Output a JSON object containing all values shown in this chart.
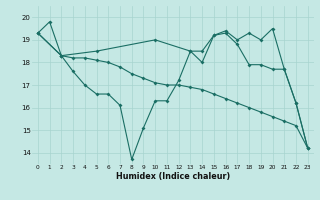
{
  "xlabel": "Humidex (Indice chaleur)",
  "background_color": "#c5e8e4",
  "grid_color": "#a8d4cf",
  "line_color": "#1a6e64",
  "xlim": [
    -0.5,
    23.5
  ],
  "ylim": [
    13.5,
    20.5
  ],
  "yticks": [
    14,
    15,
    16,
    17,
    18,
    19,
    20
  ],
  "xticks": [
    0,
    1,
    2,
    3,
    4,
    5,
    6,
    7,
    8,
    9,
    10,
    11,
    12,
    13,
    14,
    15,
    16,
    17,
    18,
    19,
    20,
    21,
    22,
    23
  ],
  "line1_x": [
    0,
    1,
    2,
    3,
    4,
    5,
    6,
    7,
    8,
    9,
    10,
    11,
    12,
    13,
    14,
    15,
    16,
    17,
    18,
    19,
    20,
    21,
    22,
    23
  ],
  "line1_y": [
    19.3,
    19.8,
    18.3,
    17.6,
    17.0,
    16.6,
    16.6,
    16.1,
    13.7,
    15.1,
    16.3,
    16.3,
    17.2,
    18.5,
    18.0,
    19.2,
    19.3,
    18.8,
    17.9,
    17.9,
    17.7,
    17.7,
    16.2,
    14.2
  ],
  "line2_x": [
    0,
    2,
    3,
    4,
    5,
    6,
    7,
    8,
    9,
    10,
    11,
    12,
    13,
    14,
    15,
    16,
    17,
    18,
    19,
    20,
    21,
    22,
    23
  ],
  "line2_y": [
    19.3,
    18.3,
    18.2,
    18.2,
    18.1,
    18.0,
    17.8,
    17.5,
    17.3,
    17.1,
    17.0,
    17.0,
    16.9,
    16.8,
    16.6,
    16.4,
    16.2,
    16.0,
    15.8,
    15.6,
    15.4,
    15.2,
    14.2
  ],
  "line3_x": [
    0,
    2,
    5,
    10,
    13,
    14,
    15,
    16,
    17,
    18,
    19,
    20,
    21,
    22,
    23
  ],
  "line3_y": [
    19.3,
    18.3,
    18.5,
    19.0,
    18.5,
    18.5,
    19.2,
    19.4,
    19.0,
    19.3,
    19.0,
    19.5,
    17.7,
    16.2,
    14.2
  ]
}
